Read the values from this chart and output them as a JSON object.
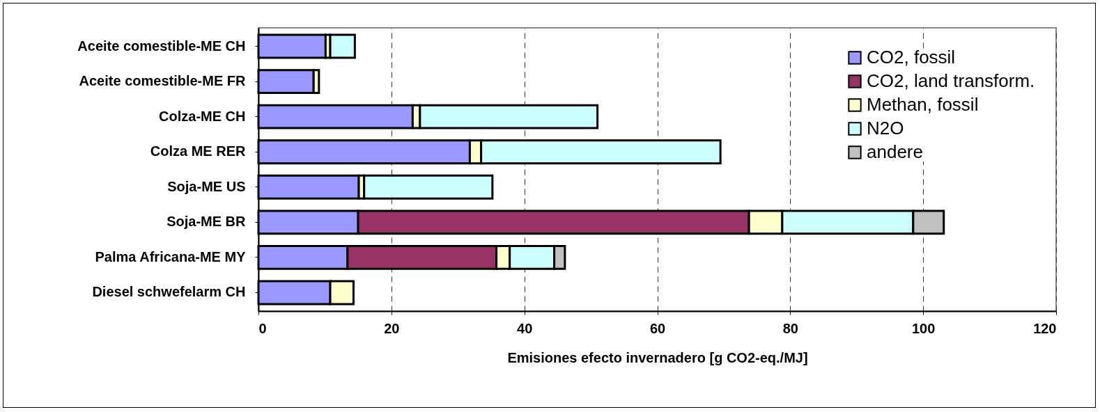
{
  "chart_data": {
    "type": "bar",
    "orientation": "horizontal",
    "stacked": true,
    "categories": [
      "Aceite comestible-ME CH",
      "Aceite comestible-ME FR",
      "Colza-ME CH",
      "Colza ME RER",
      "Soja-ME US",
      "Soja-ME BR",
      "Palma Africana-ME MY",
      "Diesel schwefelarm CH"
    ],
    "series": [
      {
        "name": "CO2, fossil",
        "color": "#9999ff",
        "values": [
          10.1,
          8.3,
          23.2,
          31.8,
          15.1,
          15.0,
          13.4,
          10.8
        ]
      },
      {
        "name": "CO2, land transform.",
        "color": "#993366",
        "values": [
          null,
          null,
          null,
          null,
          null,
          58.8,
          22.4,
          null
        ]
      },
      {
        "name": "Methan, fossil",
        "color": "#ffffcc",
        "values": [
          0.7,
          0.8,
          1.1,
          1.7,
          0.8,
          5.0,
          2.0,
          3.5
        ]
      },
      {
        "name": "N2O",
        "color": "#ccffff",
        "values": [
          3.7,
          null,
          26.7,
          36.0,
          19.3,
          19.7,
          6.7,
          null
        ]
      },
      {
        "name": "andere",
        "color": "#c0c0c0",
        "values": [
          null,
          null,
          null,
          null,
          null,
          4.6,
          1.6,
          null
        ]
      }
    ],
    "xlim": [
      0,
      120
    ],
    "xticks": [
      0,
      20,
      40,
      60,
      80,
      100,
      120
    ],
    "xlabel": "Emisiones efecto invernadero  [g CO2-eq./MJ]",
    "grid": "x",
    "legend": "top right"
  }
}
